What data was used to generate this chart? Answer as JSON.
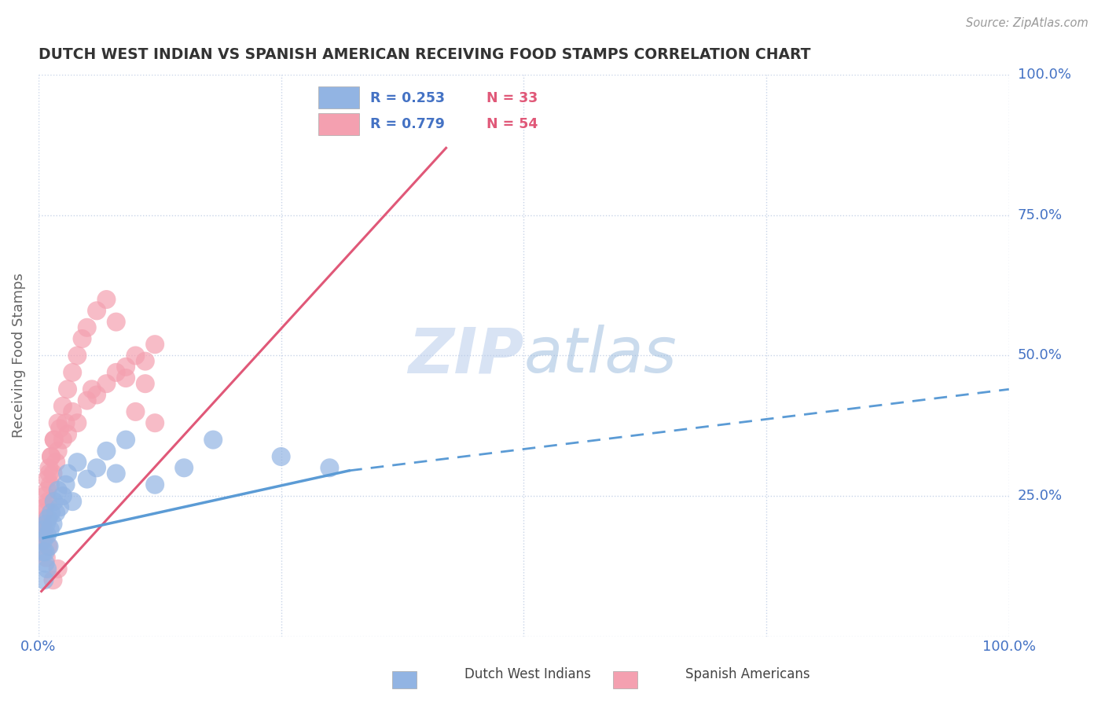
{
  "title": "DUTCH WEST INDIAN VS SPANISH AMERICAN RECEIVING FOOD STAMPS CORRELATION CHART",
  "source": "Source: ZipAtlas.com",
  "ylabel": "Receiving Food Stamps",
  "xlim": [
    0.0,
    1.0
  ],
  "ylim": [
    0.0,
    1.0
  ],
  "group1_color": "#92b4e3",
  "group2_color": "#f4a0b0",
  "group1_line_color": "#5b9bd5",
  "group2_line_color": "#e05878",
  "group1_label": "Dutch West Indians",
  "group2_label": "Spanish Americans",
  "group1_R": "0.253",
  "group1_N": "33",
  "group2_R": "0.779",
  "group2_N": "54",
  "legend_R_color": "#4472c4",
  "legend_N_color": "#e05878",
  "watermark_zip": "ZIP",
  "watermark_atlas": "atlas",
  "background_color": "#ffffff",
  "grid_color": "#c8d4e8",
  "title_color": "#333333",
  "axis_label_color": "#666666",
  "group1_scatter": {
    "x": [
      0.005,
      0.006,
      0.007,
      0.008,
      0.009,
      0.01,
      0.011,
      0.012,
      0.013,
      0.015,
      0.016,
      0.018,
      0.02,
      0.022,
      0.025,
      0.028,
      0.03,
      0.035,
      0.04,
      0.05,
      0.06,
      0.07,
      0.08,
      0.09,
      0.12,
      0.15,
      0.18,
      0.25,
      0.3,
      0.005,
      0.007,
      0.009,
      0.006
    ],
    "y": [
      0.17,
      0.19,
      0.15,
      0.2,
      0.18,
      0.21,
      0.16,
      0.19,
      0.22,
      0.2,
      0.24,
      0.22,
      0.26,
      0.23,
      0.25,
      0.27,
      0.29,
      0.24,
      0.31,
      0.28,
      0.3,
      0.33,
      0.29,
      0.35,
      0.27,
      0.3,
      0.35,
      0.32,
      0.3,
      0.15,
      0.13,
      0.12,
      0.1
    ]
  },
  "group2_scatter": {
    "x": [
      0.003,
      0.004,
      0.005,
      0.006,
      0.007,
      0.008,
      0.009,
      0.01,
      0.011,
      0.012,
      0.013,
      0.015,
      0.016,
      0.018,
      0.02,
      0.022,
      0.025,
      0.028,
      0.03,
      0.035,
      0.04,
      0.05,
      0.055,
      0.06,
      0.07,
      0.08,
      0.09,
      0.1,
      0.11,
      0.12,
      0.005,
      0.007,
      0.009,
      0.011,
      0.013,
      0.016,
      0.02,
      0.025,
      0.03,
      0.035,
      0.04,
      0.045,
      0.05,
      0.06,
      0.07,
      0.08,
      0.09,
      0.1,
      0.11,
      0.12,
      0.008,
      0.01,
      0.015,
      0.02
    ],
    "y": [
      0.17,
      0.2,
      0.22,
      0.18,
      0.25,
      0.21,
      0.28,
      0.24,
      0.3,
      0.27,
      0.32,
      0.29,
      0.35,
      0.31,
      0.33,
      0.37,
      0.35,
      0.38,
      0.36,
      0.4,
      0.38,
      0.42,
      0.44,
      0.43,
      0.45,
      0.47,
      0.46,
      0.5,
      0.49,
      0.52,
      0.19,
      0.23,
      0.26,
      0.29,
      0.32,
      0.35,
      0.38,
      0.41,
      0.44,
      0.47,
      0.5,
      0.53,
      0.55,
      0.58,
      0.6,
      0.56,
      0.48,
      0.4,
      0.45,
      0.38,
      0.14,
      0.16,
      0.1,
      0.12
    ]
  },
  "group1_line_solid": {
    "x0": 0.005,
    "y0": 0.175,
    "x1": 0.32,
    "y1": 0.295
  },
  "group1_line_dashed": {
    "x0": 0.32,
    "y0": 0.295,
    "x1": 1.0,
    "y1": 0.44
  },
  "group2_line": {
    "x0": 0.003,
    "y0": 0.08,
    "x1": 0.42,
    "y1": 0.87
  }
}
